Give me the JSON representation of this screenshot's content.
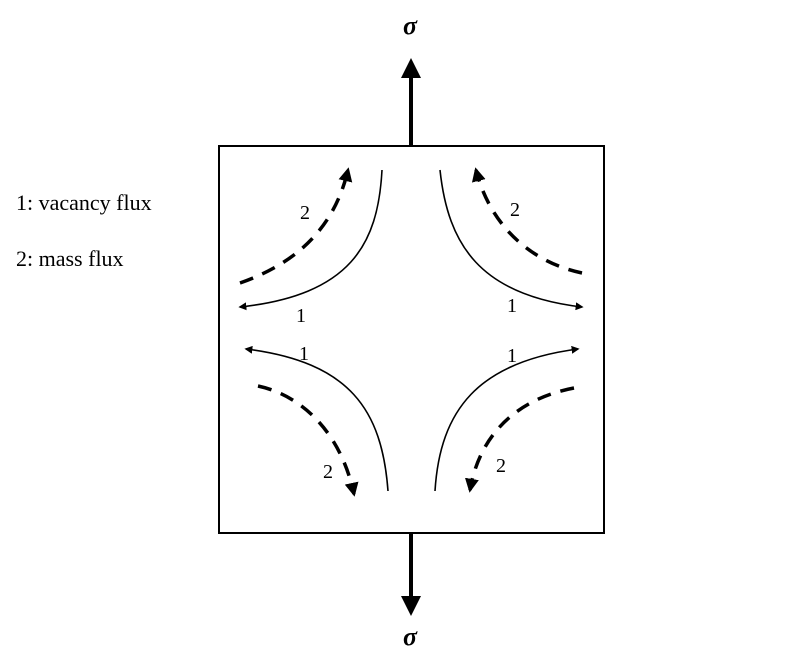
{
  "legend": {
    "item1": "1: vacancy flux",
    "item2": "2: mass flux"
  },
  "stress_symbol_top": "σ",
  "stress_symbol_bottom": "σ",
  "labels": {
    "vacancy": "1",
    "mass": "2"
  }
}
